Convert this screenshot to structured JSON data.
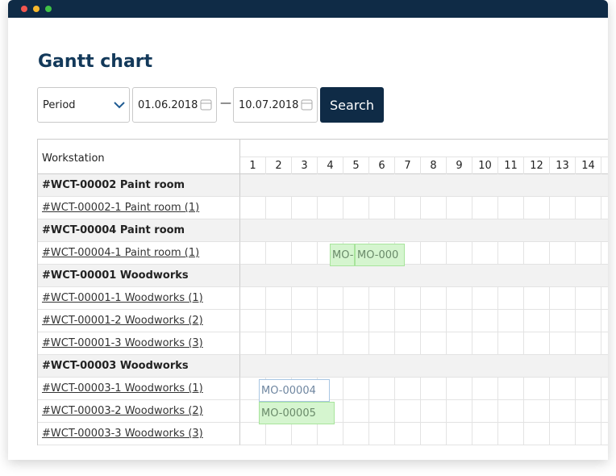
{
  "header": {
    "title": "Gantt chart"
  },
  "filters": {
    "period": "Period",
    "date_from": "01.06.2018",
    "separator": "—",
    "date_to": "10.07.2018",
    "button": "Search"
  },
  "table": {
    "column_header": "Workstation",
    "days": [
      1,
      2,
      3,
      4,
      5,
      6,
      7,
      8,
      9,
      10,
      11,
      12,
      13,
      14
    ],
    "rows": [
      {
        "label": "#WCT-00002 Paint room",
        "group": true
      },
      {
        "label": "#WCT-00002-1 Paint room (1)",
        "group": false
      },
      {
        "label": "#WCT-00004 Paint room",
        "group": true
      },
      {
        "label": "#WCT-00004-1 Paint room (1)",
        "group": false,
        "tasks": [
          "MO-",
          "MO-000"
        ]
      },
      {
        "label": "#WCT-00001 Woodworks",
        "group": true
      },
      {
        "label": "#WCT-00001-1 Woodworks (1)",
        "group": false
      },
      {
        "label": "#WCT-00001-2 Woodworks (2)",
        "group": false
      },
      {
        "label": "#WCT-00001-3 Woodworks (3)",
        "group": false
      },
      {
        "label": "#WCT-00003 Woodworks",
        "group": true
      },
      {
        "label": "#WCT-00003-1 Woodworks (1)",
        "group": false,
        "tasks": [
          "MO-00004"
        ]
      },
      {
        "label": "#WCT-00003-2 Woodworks (2)",
        "group": false,
        "tasks": [
          "MO-00005"
        ]
      },
      {
        "label": "#WCT-00003-3 Woodworks (3)",
        "group": false
      }
    ]
  }
}
